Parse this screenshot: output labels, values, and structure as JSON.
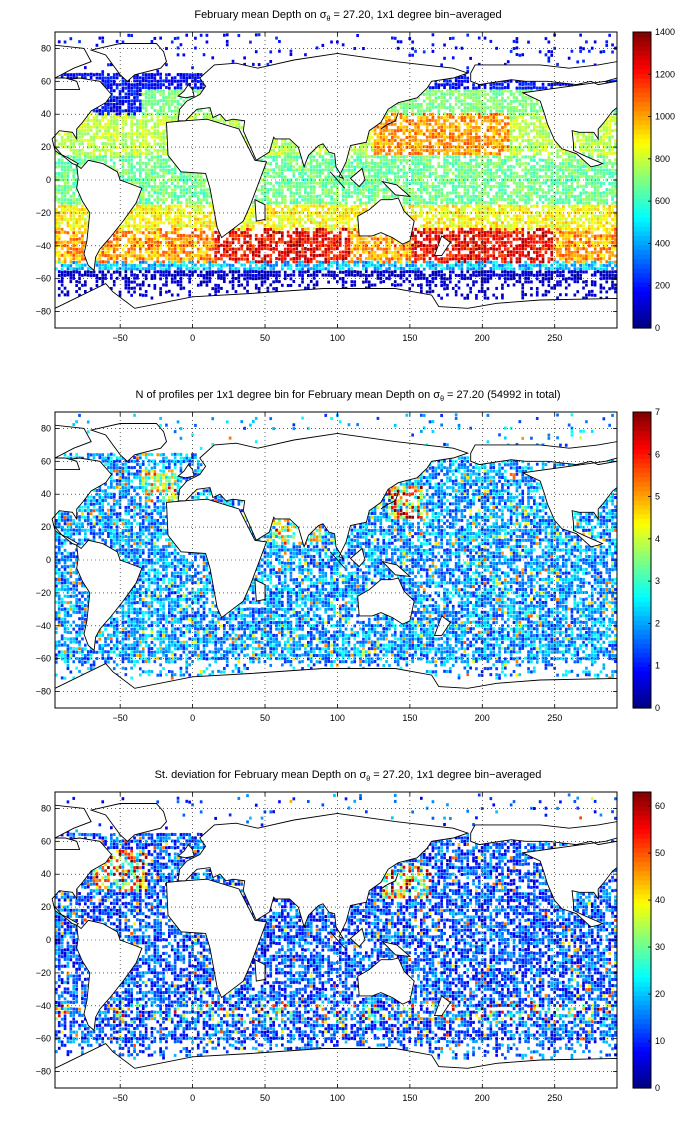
{
  "chart_data": [
    {
      "type": "heatmap",
      "title": "February mean Depth on σθ = 27.20, 1x1 degree bin−averaged",
      "title_parts": [
        "February mean Depth on ",
        "σ",
        "θ",
        " = 27.20, 1x1 degree bin−averaged"
      ],
      "xlim": [
        -95,
        293
      ],
      "ylim": [
        -90,
        90
      ],
      "xticks": [
        -50,
        0,
        50,
        100,
        150,
        200,
        250
      ],
      "yticks": [
        80,
        60,
        40,
        20,
        0,
        -20,
        -40,
        -60,
        -80
      ],
      "grid": true,
      "colorbar": {
        "min": 0,
        "max": 1400,
        "ticks": [
          0,
          200,
          400,
          600,
          800,
          1000,
          1200,
          1400
        ]
      },
      "field": "depth",
      "colormap": "jet"
    },
    {
      "type": "heatmap",
      "title": "N of profiles per 1x1 degree bin for February mean Depth on σθ = 27.20 (54992 in total)",
      "title_parts": [
        "N of profiles per 1x1 degree bin for February mean Depth on ",
        "σ",
        "θ",
        " = 27.20 (54992 in total)"
      ],
      "xlim": [
        -95,
        293
      ],
      "ylim": [
        -90,
        90
      ],
      "xticks": [
        -50,
        0,
        50,
        100,
        150,
        200,
        250
      ],
      "yticks": [
        80,
        60,
        40,
        20,
        0,
        -20,
        -40,
        -60,
        -80
      ],
      "grid": true,
      "colorbar": {
        "min": 0,
        "max": 7,
        "ticks": [
          0,
          1,
          2,
          3,
          4,
          5,
          6,
          7
        ]
      },
      "field": "count",
      "colormap": "jet"
    },
    {
      "type": "heatmap",
      "title": "St. deviation for February mean Depth on σθ = 27.20, 1x1 degree bin−averaged",
      "title_parts": [
        "St. deviation for February mean Depth on ",
        "σ",
        "θ",
        " = 27.20, 1x1 degree bin−averaged"
      ],
      "xlim": [
        -95,
        293
      ],
      "ylim": [
        -90,
        90
      ],
      "xticks": [
        -50,
        0,
        50,
        100,
        150,
        200,
        250
      ],
      "yticks": [
        80,
        60,
        40,
        20,
        0,
        -20,
        -40,
        -60,
        -80
      ],
      "grid": true,
      "colorbar": {
        "min": 0,
        "max": 63,
        "ticks": [
          0,
          10,
          20,
          30,
          40,
          50,
          60
        ]
      },
      "field": "std",
      "colormap": "jet"
    }
  ]
}
